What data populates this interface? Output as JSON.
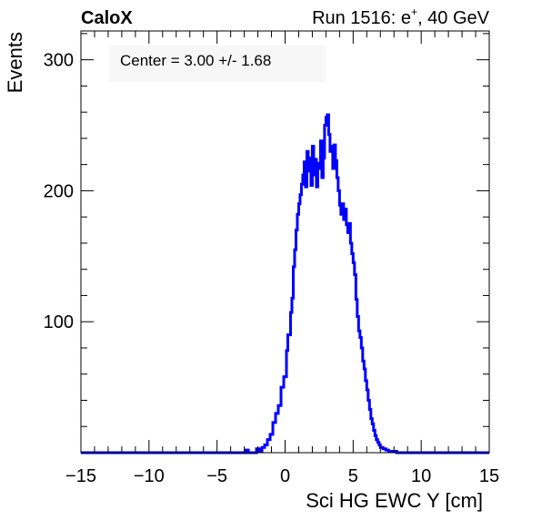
{
  "header": {
    "left": "CaloX",
    "right_prefix": "Run 1516: e",
    "right_sup": "+",
    "right_suffix": ", 40 GeV"
  },
  "annotation": "Center = 3.00 +/- 1.68",
  "colors": {
    "line": "#0000ff",
    "frame": "#000000",
    "stats_box": "#f7f7f7"
  },
  "chart_data": {
    "type": "line",
    "style": "step-histogram",
    "xlabel": "Sci HG EWC Y [cm]",
    "ylabel": "Events",
    "xlim": [
      -15,
      15
    ],
    "ylim": [
      0,
      322
    ],
    "x_ticks": [
      -15,
      -10,
      -5,
      0,
      5,
      10,
      15
    ],
    "x_tick_labels": [
      "−15",
      "−10",
      "−5",
      "0",
      "5",
      "10",
      "15"
    ],
    "y_ticks": [
      100,
      200,
      300
    ],
    "y_tick_labels": [
      "100",
      "200",
      "300"
    ],
    "grid": false,
    "legend": "none",
    "series": [
      {
        "points": [
          [
            -15.0,
            0
          ],
          [
            -3.0,
            0
          ],
          [
            -2.9,
            2
          ],
          [
            -2.7,
            0
          ],
          [
            -2.2,
            0
          ],
          [
            -2.1,
            3
          ],
          [
            -1.9,
            1
          ],
          [
            -1.7,
            4
          ],
          [
            -1.5,
            6
          ],
          [
            -1.3,
            10
          ],
          [
            -1.1,
            14
          ],
          [
            -0.9,
            23
          ],
          [
            -0.7,
            30
          ],
          [
            -0.5,
            36
          ],
          [
            -0.3,
            50
          ],
          [
            -0.1,
            58
          ],
          [
            0.1,
            78
          ],
          [
            0.2,
            90
          ],
          [
            0.4,
            107
          ],
          [
            0.5,
            118
          ],
          [
            0.6,
            142
          ],
          [
            0.7,
            155
          ],
          [
            0.8,
            170
          ],
          [
            0.9,
            182
          ],
          [
            1.0,
            190
          ],
          [
            1.1,
            197
          ],
          [
            1.2,
            205
          ],
          [
            1.3,
            212
          ],
          [
            1.4,
            222
          ],
          [
            1.5,
            203
          ],
          [
            1.6,
            230
          ],
          [
            1.7,
            215
          ],
          [
            1.8,
            225
          ],
          [
            1.9,
            204
          ],
          [
            2.0,
            234
          ],
          [
            2.1,
            212
          ],
          [
            2.2,
            224
          ],
          [
            2.3,
            203
          ],
          [
            2.4,
            217
          ],
          [
            2.5,
            221
          ],
          [
            2.6,
            238
          ],
          [
            2.7,
            210
          ],
          [
            2.8,
            225
          ],
          [
            2.9,
            250
          ],
          [
            3.0,
            256
          ],
          [
            3.1,
            258
          ],
          [
            3.2,
            243
          ],
          [
            3.3,
            230
          ],
          [
            3.4,
            234
          ],
          [
            3.5,
            217
          ],
          [
            3.6,
            235
          ],
          [
            3.7,
            223
          ],
          [
            3.8,
            210
          ],
          [
            3.9,
            200
          ],
          [
            4.0,
            189
          ],
          [
            4.1,
            182
          ],
          [
            4.2,
            190
          ],
          [
            4.3,
            178
          ],
          [
            4.4,
            186
          ],
          [
            4.5,
            174
          ],
          [
            4.6,
            168
          ],
          [
            4.7,
            175
          ],
          [
            4.8,
            160
          ],
          [
            4.9,
            152
          ],
          [
            5.0,
            145
          ],
          [
            5.1,
            136
          ],
          [
            5.2,
            117
          ],
          [
            5.3,
            104
          ],
          [
            5.4,
            93
          ],
          [
            5.5,
            88
          ],
          [
            5.6,
            80
          ],
          [
            5.7,
            70
          ],
          [
            5.8,
            64
          ],
          [
            5.9,
            55
          ],
          [
            6.0,
            48
          ],
          [
            6.1,
            40
          ],
          [
            6.2,
            33
          ],
          [
            6.3,
            26
          ],
          [
            6.4,
            22
          ],
          [
            6.5,
            17
          ],
          [
            6.6,
            13
          ],
          [
            6.7,
            10
          ],
          [
            6.8,
            8
          ],
          [
            6.9,
            6
          ],
          [
            7.0,
            4
          ],
          [
            7.2,
            3
          ],
          [
            7.4,
            2
          ],
          [
            7.6,
            1
          ],
          [
            7.8,
            1
          ],
          [
            8.2,
            0
          ],
          [
            15.0,
            0
          ]
        ]
      }
    ]
  }
}
